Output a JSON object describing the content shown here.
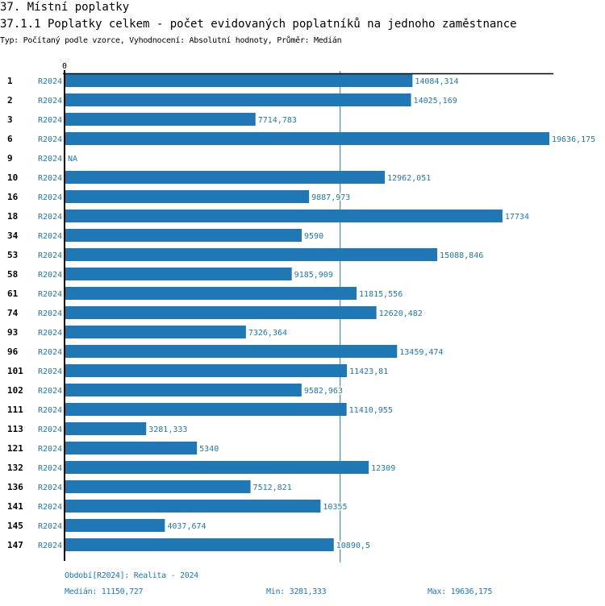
{
  "header": {
    "section_title": "37. Místní poplatky",
    "chart_title": "37.1.1 Poplatky celkem - počet evidovaných poplatníků na jednoho zaměstnance",
    "subtitle": "Typ: Počítaný podle vzorce, Vyhodnocení: Absolutní hodnoty, Průměr: Medián"
  },
  "colors": {
    "bar": "#1f77b4",
    "median_line": "#1f77b4",
    "axis": "#000000",
    "label_text": "#1f77b4"
  },
  "chart_data": {
    "type": "bar",
    "orientation": "horizontal",
    "title": "37.1.1 Poplatky celkem - počet evidovaných poplatníků na jednoho zaměstnance",
    "xlabel": "",
    "ylabel": "",
    "axis_zero_label": "0",
    "xlim": [
      0,
      19636.175
    ],
    "grid": false,
    "reference_line": {
      "name": "Medián",
      "value": 11150.727
    },
    "categories": [
      "1",
      "2",
      "3",
      "6",
      "9",
      "10",
      "16",
      "18",
      "34",
      "53",
      "58",
      "61",
      "74",
      "93",
      "96",
      "101",
      "102",
      "111",
      "113",
      "121",
      "132",
      "136",
      "141",
      "145",
      "147"
    ],
    "series": [
      {
        "name": "R2024",
        "values": [
          14084.314,
          14025.169,
          7714.783,
          19636.175,
          null,
          12962.051,
          9887.973,
          17734,
          9590,
          15088.846,
          9185.909,
          11815.556,
          12620.482,
          7326.364,
          13459.474,
          11423.81,
          9582.963,
          11410.955,
          3281.333,
          5340,
          12309,
          7512.821,
          10355,
          4037.674,
          10890.5
        ],
        "value_labels": [
          "14084,314",
          "14025,169",
          "7714,783",
          "19636,175",
          "NA",
          "12962,051",
          "9887,973",
          "17734",
          "9590",
          "15088,846",
          "9185,909",
          "11815,556",
          "12620,482",
          "7326,364",
          "13459,474",
          "11423,81",
          "9582,963",
          "11410,955",
          "3281,333",
          "5340",
          "12309",
          "7512,821",
          "10355",
          "4037,674",
          "10890,5"
        ]
      }
    ]
  },
  "footer": {
    "period_note": "Období[R2024]: Realita - 2024",
    "median": "Medián: 11150,727",
    "min": "Min: 3281,333",
    "max": "Max: 19636,175"
  }
}
